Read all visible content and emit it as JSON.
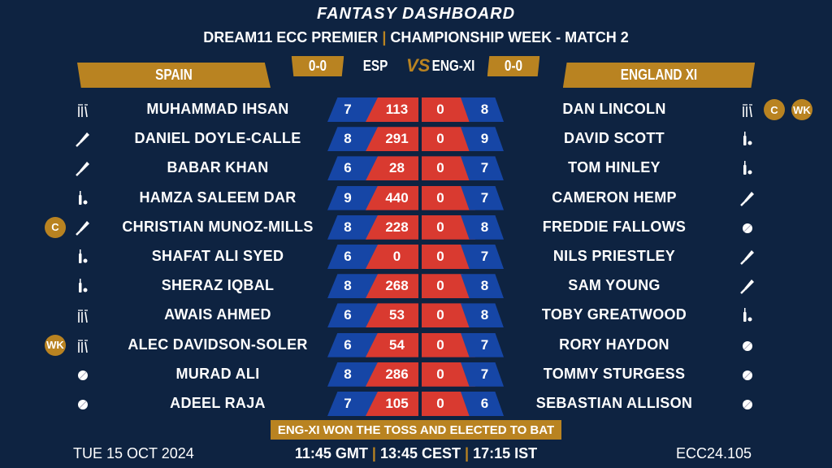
{
  "header": {
    "title": "FANTASY DASHBOARD",
    "subtitle_left": "DREAM11 ECC PREMIER",
    "subtitle_right": "CHAMPIONSHIP WEEK - MATCH 2",
    "separator": "|"
  },
  "teams": {
    "left": {
      "name": "SPAIN",
      "code": "ESP",
      "score": "0-0"
    },
    "right": {
      "name": "ENGLAND XI",
      "code": "ENG-XI",
      "score": "0-0"
    },
    "vs": "VS"
  },
  "colors": {
    "background": "#0e2341",
    "gold": "#b98321",
    "blue": "#1646a6",
    "red": "#d93a30"
  },
  "rows": [
    {
      "left": {
        "name": "MUHAMMAD IHSAN",
        "role": "wicketkeeper",
        "credits": "7",
        "points": "113",
        "badges": []
      },
      "right": {
        "name": "DAN LINCOLN",
        "role": "wicketkeeper",
        "credits": "8",
        "points": "0",
        "badges": [
          "C",
          "WK"
        ]
      }
    },
    {
      "left": {
        "name": "DANIEL DOYLE-CALLE",
        "role": "batter",
        "credits": "8",
        "points": "291",
        "badges": []
      },
      "right": {
        "name": "DAVID SCOTT",
        "role": "all-rounder",
        "credits": "9",
        "points": "0",
        "badges": []
      }
    },
    {
      "left": {
        "name": "BABAR KHAN",
        "role": "batter",
        "credits": "6",
        "points": "28",
        "badges": []
      },
      "right": {
        "name": "TOM HINLEY",
        "role": "all-rounder",
        "credits": "7",
        "points": "0",
        "badges": []
      }
    },
    {
      "left": {
        "name": "HAMZA SALEEM DAR",
        "role": "all-rounder",
        "credits": "9",
        "points": "440",
        "badges": []
      },
      "right": {
        "name": "CAMERON HEMP",
        "role": "batter",
        "credits": "7",
        "points": "0",
        "badges": []
      }
    },
    {
      "left": {
        "name": "CHRISTIAN MUNOZ-MILLS",
        "role": "batter",
        "credits": "8",
        "points": "228",
        "badges": [
          "C"
        ]
      },
      "right": {
        "name": "FREDDIE FALLOWS",
        "role": "bowler",
        "credits": "8",
        "points": "0",
        "badges": []
      }
    },
    {
      "left": {
        "name": "SHAFAT ALI SYED",
        "role": "all-rounder",
        "credits": "6",
        "points": "0",
        "badges": []
      },
      "right": {
        "name": "NILS PRIESTLEY",
        "role": "batter",
        "credits": "7",
        "points": "0",
        "badges": []
      }
    },
    {
      "left": {
        "name": "SHERAZ IQBAL",
        "role": "all-rounder",
        "credits": "8",
        "points": "268",
        "badges": []
      },
      "right": {
        "name": "SAM YOUNG",
        "role": "batter",
        "credits": "8",
        "points": "0",
        "badges": []
      }
    },
    {
      "left": {
        "name": "AWAIS AHMED",
        "role": "wicketkeeper",
        "credits": "6",
        "points": "53",
        "badges": []
      },
      "right": {
        "name": "TOBY GREATWOOD",
        "role": "all-rounder",
        "credits": "8",
        "points": "0",
        "badges": []
      }
    },
    {
      "left": {
        "name": "ALEC DAVIDSON-SOLER",
        "role": "wicketkeeper",
        "credits": "6",
        "points": "54",
        "badges": [
          "WK"
        ]
      },
      "right": {
        "name": "RORY HAYDON",
        "role": "bowler",
        "credits": "7",
        "points": "0",
        "badges": []
      }
    },
    {
      "left": {
        "name": "MURAD ALI",
        "role": "bowler",
        "credits": "8",
        "points": "286",
        "badges": []
      },
      "right": {
        "name": "TOMMY STURGESS",
        "role": "bowler",
        "credits": "7",
        "points": "0",
        "badges": []
      }
    },
    {
      "left": {
        "name": "ADEEL RAJA",
        "role": "bowler",
        "credits": "7",
        "points": "105",
        "badges": []
      },
      "right": {
        "name": "SEBASTIAN ALLISON",
        "role": "bowler",
        "credits": "6",
        "points": "0",
        "badges": []
      }
    }
  ],
  "footer": {
    "toss": "ENG-XI WON THE TOSS AND ELECTED TO BAT",
    "date": "TUE 15 OCT 2024",
    "time_gmt": "11:45 GMT",
    "time_cest": "13:45 CEST",
    "time_ist": "17:15 IST",
    "separator": "|",
    "match_code": "ECC24.105"
  }
}
